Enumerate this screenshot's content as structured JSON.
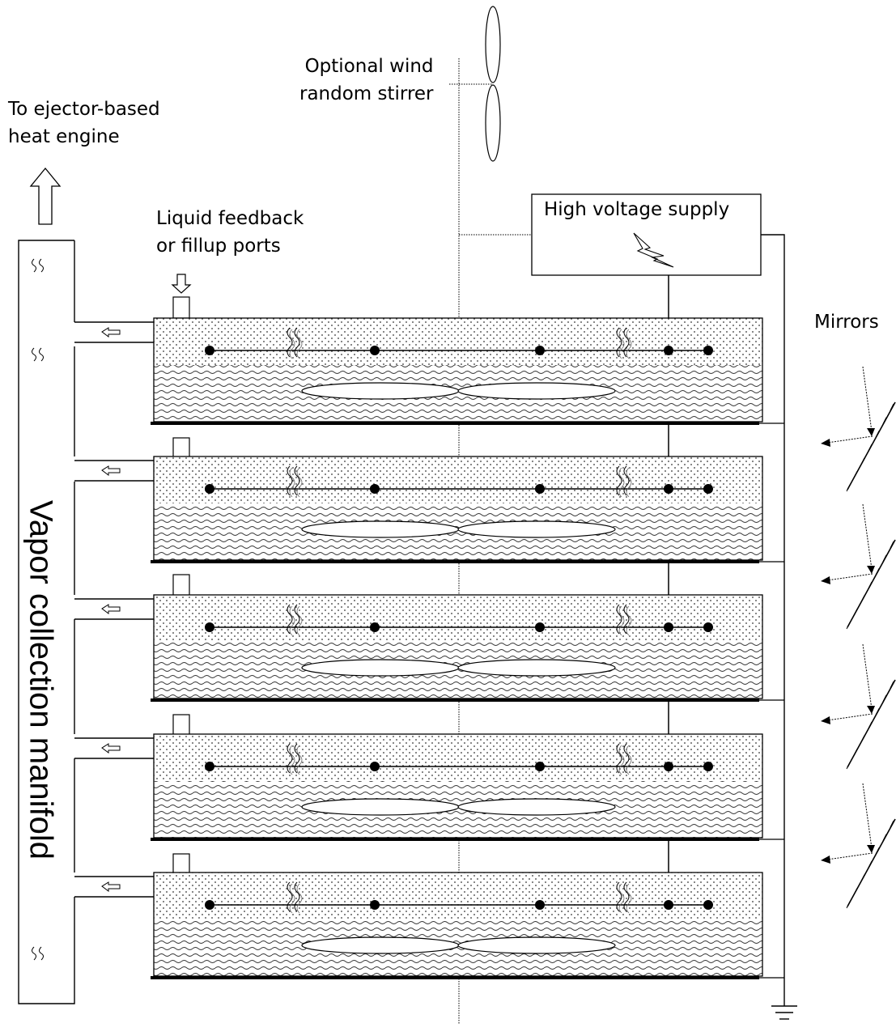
{
  "labels": {
    "ejector": [
      "To ejector-based",
      "heat engine"
    ],
    "liquid_feedback": [
      "Liquid feedback",
      "or fillup ports"
    ],
    "wind_stirrer": [
      "Optional wind",
      "random stirrer"
    ],
    "high_voltage": "High voltage supply",
    "mirrors": "Mirrors",
    "manifold": "Vapor collection manifold"
  },
  "trays": {
    "count": 5,
    "electrodes_per_tray": 5
  },
  "mirrors": {
    "count": 4
  },
  "colors": {
    "line": "#000000",
    "background": "#ffffff"
  },
  "icons": [
    "up-arrow-icon",
    "down-arrow-icon",
    "left-arrow-icon",
    "vapor-icon",
    "lightning-icon",
    "ground-icon",
    "propeller-icon"
  ]
}
